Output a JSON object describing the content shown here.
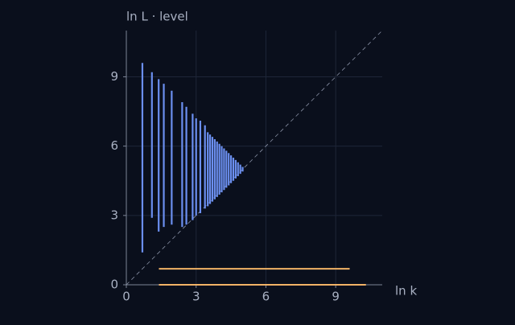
{
  "chart_data": {
    "type": "scatter",
    "x_label": "ln k",
    "y_label": "ln L · level",
    "xlim": [
      0,
      11
    ],
    "ylim": [
      0,
      11
    ],
    "xticks": [
      0,
      3,
      6,
      9
    ],
    "yticks": [
      0,
      3,
      6,
      9
    ],
    "grid": true,
    "diagonal": true,
    "series": [
      {
        "kind": "vertical",
        "color": "#6b8ff0",
        "x": [
          0.69,
          1.1,
          1.39,
          1.61,
          1.95,
          2.4,
          2.58,
          2.85,
          3.0,
          3.18,
          3.38,
          3.5,
          3.6,
          3.7,
          3.8,
          3.9,
          4.0,
          4.1,
          4.2,
          4.3,
          4.4,
          4.5,
          4.6,
          4.7,
          4.8,
          4.9,
          5.0
        ],
        "low": [
          1.4,
          2.9,
          2.3,
          2.5,
          2.6,
          2.5,
          2.6,
          2.8,
          3.0,
          3.1,
          3.3,
          3.4,
          3.5,
          3.6,
          3.7,
          3.8,
          3.9,
          4.0,
          4.1,
          4.2,
          4.3,
          4.4,
          4.5,
          4.6,
          4.7,
          4.8,
          4.9
        ],
        "high": [
          9.6,
          9.2,
          8.9,
          8.7,
          8.4,
          7.9,
          7.7,
          7.4,
          7.2,
          7.1,
          6.9,
          6.6,
          6.5,
          6.4,
          6.3,
          6.2,
          6.1,
          6.0,
          5.9,
          5.8,
          5.7,
          5.6,
          5.5,
          5.4,
          5.3,
          5.2,
          5.1
        ]
      },
      {
        "kind": "horizontal",
        "color": "#f2b366",
        "y": [
          0.69,
          0
        ],
        "xmin": [
          1.4,
          1.4
        ],
        "xmax": [
          9.6,
          10.3
        ]
      }
    ]
  }
}
